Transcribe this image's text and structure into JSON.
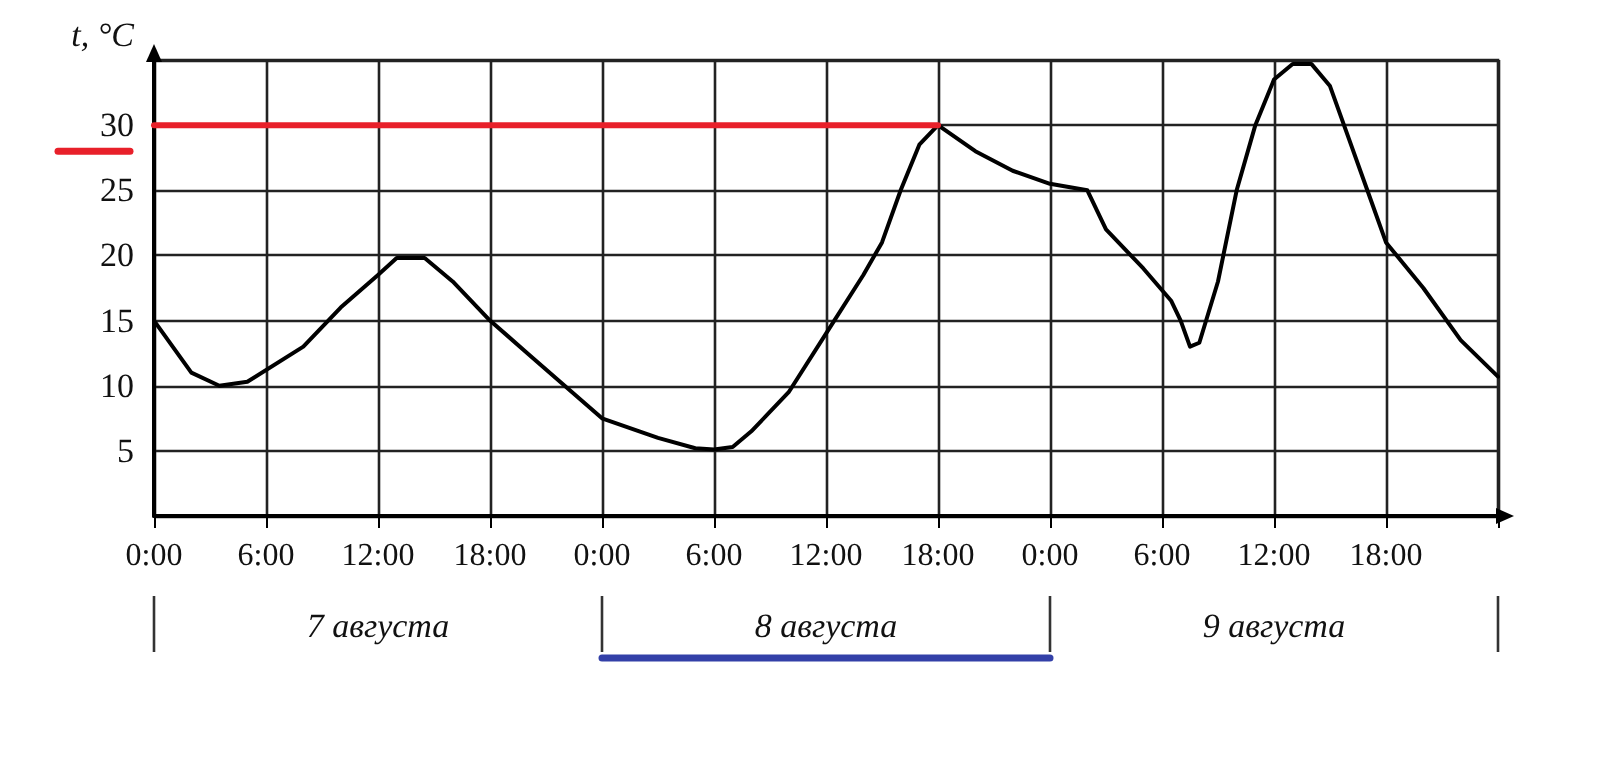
{
  "chart_data": {
    "type": "line",
    "ylabel": "t, °C",
    "annotations": [
      "7 августа",
      "8 августа",
      "9 августа"
    ],
    "xlim": [
      "--08-07T00:00",
      "--08-10T00:00"
    ],
    "ylim": [
      0,
      35
    ],
    "xticks": [
      {
        "value": "--08-07T00:00",
        "label": "0:00"
      },
      {
        "value": "--08-07T06:00",
        "label": "6:00"
      },
      {
        "value": "--08-07T12:00",
        "label": "12:00"
      },
      {
        "value": "--08-07T18:00",
        "label": "18:00"
      },
      {
        "value": "--08-08T00:00",
        "label": "0:00"
      },
      {
        "value": "--08-08T06:00",
        "label": "6:00"
      },
      {
        "value": "--08-08T12:00",
        "label": "12:00"
      },
      {
        "value": "--08-08T18:00",
        "label": "18:00"
      },
      {
        "value": "--08-09T00:00",
        "label": "0:00"
      },
      {
        "value": "--08-09T06:00",
        "label": "6:00"
      },
      {
        "value": "--08-09T12:00",
        "label": "12:00"
      },
      {
        "value": "--08-09T18:00",
        "label": "18:00"
      },
      {
        "value": "--08-10T00:00",
        "label": null
      }
    ],
    "yticks": [
      {
        "value": 0,
        "label": null
      },
      5,
      10,
      15,
      20,
      25,
      30,
      {
        "value": 35,
        "label": null
      }
    ],
    "grid": true,
    "marker": "none",
    "line_style": "solid",
    "series": [
      {
        "color": "#000000",
        "x": [
          "--08-07T00:00",
          "--08-07T02:00",
          "--08-07T03:30",
          "--08-07T05:00",
          "--08-07T08:00",
          "--08-07T10:00",
          "--08-07T12:00",
          "--08-07T13:00",
          "--08-07T14:30",
          "--08-07T16:00",
          "--08-07T18:00",
          "--08-07T20:00",
          "--08-07T22:00",
          "--08-08T00:00",
          "--08-08T03:00",
          "--08-08T05:00",
          "--08-08T06:00",
          "--08-08T07:00",
          "--08-08T08:00",
          "--08-08T10:00",
          "--08-08T12:00",
          "--08-08T14:00",
          "--08-08T15:00",
          "--08-08T16:00",
          "--08-08T17:00",
          "--08-08T18:00",
          "--08-08T20:00",
          "--08-08T22:00",
          "--08-09T00:00",
          "--08-09T02:00",
          "--08-09T03:00",
          "--08-09T05:00",
          "--08-09T06:30",
          "--08-09T07:00",
          "--08-09T07:30",
          "--08-09T08:00",
          "--08-09T09:00",
          "--08-09T10:00",
          "--08-09T11:00",
          "--08-09T12:00",
          "--08-09T13:00",
          "--08-09T14:00",
          "--08-09T15:00",
          "--08-09T16:00",
          "--08-09T17:00",
          "--08-09T18:00",
          "--08-09T20:00",
          "--08-09T22:00",
          "--08-10T00:00"
        ],
        "values": [
          15,
          11,
          10,
          10.3,
          13,
          16,
          18.5,
          19.8,
          19.8,
          18,
          15,
          12.5,
          10,
          7.5,
          6,
          5.2,
          5.1,
          5.3,
          6.5,
          9.5,
          14,
          18.5,
          21,
          25,
          28.5,
          30,
          28,
          26.5,
          25.5,
          25,
          22,
          19,
          16.5,
          15,
          13,
          13.3,
          18,
          25,
          30,
          33.5,
          34.7,
          34.7,
          33,
          29,
          25,
          21,
          17.5,
          13.5,
          10.7
        ]
      },
      {
        "color": "#e8202a",
        "x": [
          "--08-07T00:00",
          "--08-08T18:00"
        ],
        "values": [
          30,
          30
        ]
      }
    ]
  }
}
